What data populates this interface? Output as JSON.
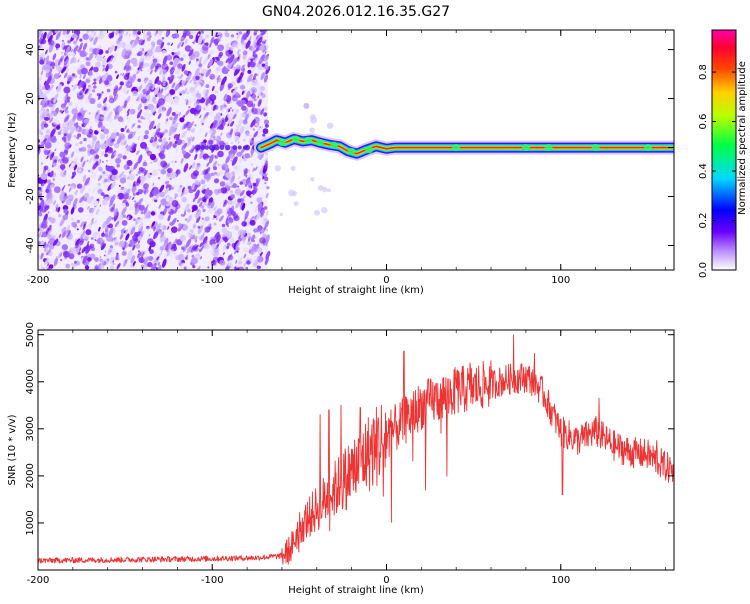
{
  "title": "GN04.2026.012.16.35.G27",
  "chart_data": [
    {
      "id": "spectrogram",
      "type": "heatmap",
      "xlabel": "Height of straight line (km)",
      "ylabel": "Frequency (Hz)",
      "xlim": [
        -200,
        165
      ],
      "ylim": [
        -50,
        48
      ],
      "xticks": [
        -200,
        -100,
        0,
        100
      ],
      "xtick_labels": [
        "-200",
        "-100",
        "0",
        "100"
      ],
      "yticks": [
        -40,
        -20,
        0,
        20,
        40
      ],
      "ytick_labels": [
        "-40",
        "-20",
        "0",
        "20",
        "40"
      ],
      "noise_region_km": [
        -200,
        -68
      ],
      "signal_start_km": -72,
      "ridge": [
        {
          "x": -72,
          "y": 0
        },
        {
          "x": -67,
          "y": 1.5
        },
        {
          "x": -63,
          "y": 3
        },
        {
          "x": -58,
          "y": 2
        },
        {
          "x": -53,
          "y": 3.5
        },
        {
          "x": -48,
          "y": 2.5
        },
        {
          "x": -43,
          "y": 3
        },
        {
          "x": -38,
          "y": 2
        },
        {
          "x": -32,
          "y": 1
        },
        {
          "x": -27,
          "y": 0.5
        },
        {
          "x": -22,
          "y": -1.5
        },
        {
          "x": -17,
          "y": -2.5
        },
        {
          "x": -12,
          "y": -1
        },
        {
          "x": -6,
          "y": 0.5
        },
        {
          "x": 0,
          "y": -0.5
        },
        {
          "x": 5,
          "y": 0
        },
        {
          "x": 165,
          "y": 0
        }
      ],
      "colorbar": {
        "label": "Normalized spectral amplitude",
        "ticks": [
          0.0,
          0.2,
          0.4,
          0.6,
          0.8
        ],
        "tick_labels": [
          "0.0",
          "0.2",
          "0.4",
          "0.6",
          "0.8"
        ],
        "range": [
          0.0,
          0.97
        ]
      }
    },
    {
      "id": "snr",
      "type": "line",
      "xlabel": "Height of straight line (km)",
      "ylabel": "SNR (10 * v/v)",
      "xlim": [
        -200,
        165
      ],
      "ylim": [
        0,
        5100
      ],
      "xticks": [
        -200,
        -100,
        0,
        100
      ],
      "xtick_labels": [
        "-200",
        "-100",
        "0",
        "100"
      ],
      "yticks": [
        1000,
        2000,
        3000,
        4000,
        5000
      ],
      "ytick_labels": [
        "1000",
        "2000",
        "3000",
        "4000",
        "5000"
      ],
      "series": [
        {
          "name": "SNR",
          "color": "#ee3333",
          "x": [
            -200,
            -150,
            -100,
            -75,
            -60,
            -55,
            -50,
            -40,
            -30,
            -20,
            -10,
            0,
            10,
            20,
            40,
            60,
            70,
            80,
            85,
            90,
            95,
            100,
            110,
            120,
            130,
            140,
            150,
            160,
            165
          ],
          "y": [
            200,
            220,
            240,
            260,
            300,
            450,
            900,
            1300,
            1700,
            2100,
            2500,
            2850,
            3150,
            3500,
            3800,
            3950,
            4050,
            4100,
            4000,
            3750,
            3350,
            2950,
            2750,
            2950,
            2650,
            2500,
            2450,
            2200,
            2100
          ]
        }
      ],
      "spikes": [
        {
          "x": -38,
          "y": 3300
        },
        {
          "x": -33,
          "y": 3400
        },
        {
          "x": -26,
          "y": 3500
        },
        {
          "x": -15,
          "y": 3450
        },
        {
          "x": 10,
          "y": 4650
        },
        {
          "x": 48,
          "y": 4400
        },
        {
          "x": 73,
          "y": 5000
        },
        {
          "x": 85,
          "y": 4600
        },
        {
          "x": 101,
          "y": 1600
        },
        {
          "x": 122,
          "y": 3650
        },
        {
          "x": 155,
          "y": 2750
        }
      ]
    }
  ],
  "colors": {
    "background": "#ffffff",
    "axis": "#000000",
    "noise": "#7a2cf0",
    "snr_line": "#ee3333"
  }
}
